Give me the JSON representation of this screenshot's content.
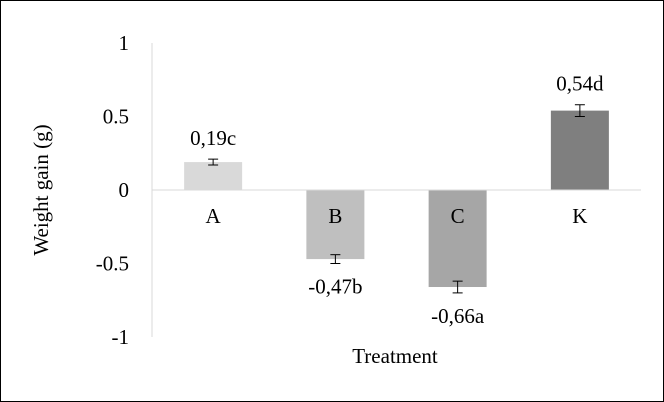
{
  "chart_data": {
    "type": "bar",
    "categories": [
      "A",
      "B",
      "C",
      "K"
    ],
    "values": [
      0.19,
      -0.47,
      -0.66,
      0.54
    ],
    "errors": [
      0.02,
      0.03,
      0.04,
      0.04
    ],
    "data_labels": [
      "0,19c",
      "-0,47b",
      "-0,66a",
      "0,54d"
    ],
    "bar_colors": [
      "#d9d9d9",
      "#bfbfbf",
      "#a6a6a6",
      "#7f7f7f"
    ],
    "xlabel": "Treatment",
    "ylabel": "Weight gain (g)",
    "ylim": [
      -1,
      1
    ],
    "yticks": [
      1,
      0.5,
      0,
      -0.5,
      -1
    ],
    "ytick_labels": [
      "1",
      "0.5",
      "0",
      "-0.5",
      "-1"
    ],
    "grid": false,
    "legend": "none"
  }
}
